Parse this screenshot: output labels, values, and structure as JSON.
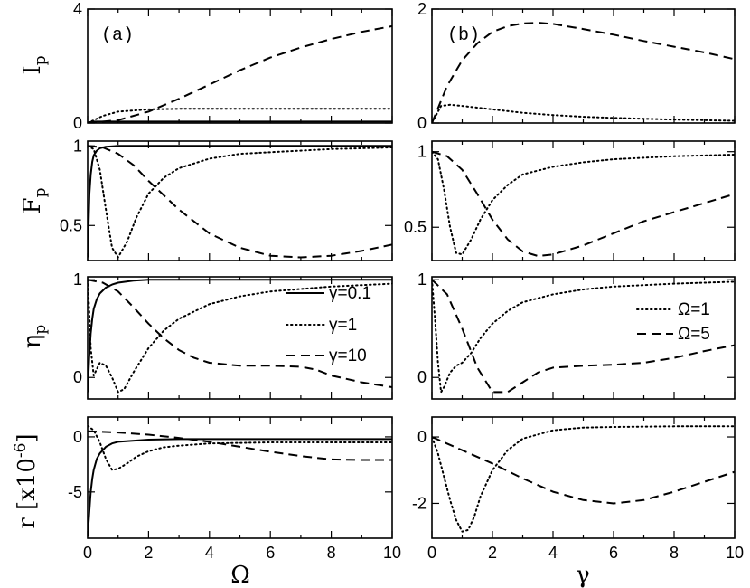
{
  "figure": {
    "xlabel_left": "Ω",
    "xlabel_right": "γ"
  },
  "panels": {
    "a": {
      "tag": "(a)"
    },
    "b": {
      "tag": "(b)"
    }
  },
  "rows": [
    {
      "ylabel": "I",
      "ysub": "p"
    },
    {
      "ylabel": "F",
      "ysub": "p"
    },
    {
      "ylabel": "η",
      "ysub": "p"
    },
    {
      "ylabel": "r [x10",
      "ysub": "",
      "ysup": "-6",
      "ysuffix": "]"
    }
  ],
  "legends": {
    "left": [
      "γ=0.1",
      "γ=1",
      "γ=10"
    ],
    "right": [
      "Ω=1",
      "Ω=5"
    ]
  },
  "style": {
    "line_color": "#000000"
  },
  "chart_data": [
    {
      "type": "line",
      "id": "Ip_a",
      "xlabel": "Ω",
      "ylabel": "Ip",
      "xlim": [
        0,
        10
      ],
      "ylim": [
        0,
        4
      ],
      "xticks": [],
      "yticks": [
        0,
        4
      ],
      "series": [
        {
          "name": "γ=0.1",
          "dash": "solid",
          "x": [
            0,
            0.2,
            0.5,
            1,
            10
          ],
          "y": [
            0.02,
            0.05,
            0.05,
            0.05,
            0.05
          ]
        },
        {
          "name": "γ=1",
          "dash": "dotted",
          "x": [
            0,
            0.5,
            1,
            2,
            3,
            5,
            10
          ],
          "y": [
            0,
            0.25,
            0.4,
            0.48,
            0.5,
            0.5,
            0.5
          ]
        },
        {
          "name": "γ=10",
          "dash": "dashed",
          "x": [
            0,
            1,
            2,
            3,
            4,
            5,
            6,
            7,
            8,
            9,
            10
          ],
          "y": [
            0,
            0.1,
            0.4,
            0.85,
            1.35,
            1.85,
            2.3,
            2.65,
            2.95,
            3.2,
            3.4
          ]
        }
      ]
    },
    {
      "type": "line",
      "id": "Fp_a",
      "xlabel": "Ω",
      "ylabel": "Fp",
      "xlim": [
        0,
        10
      ],
      "ylim": [
        0.28,
        1.03
      ],
      "xticks": [],
      "yticks": [
        0.5,
        1
      ],
      "series": [
        {
          "name": "γ=0.1",
          "dash": "solid",
          "x": [
            0,
            0.03,
            0.06,
            0.1,
            0.15,
            0.2,
            0.3,
            0.4,
            0.6,
            1,
            10
          ],
          "y": [
            0.3,
            0.5,
            0.7,
            0.82,
            0.9,
            0.94,
            0.97,
            0.985,
            0.995,
            1.0,
            1.0
          ]
        },
        {
          "name": "γ=1",
          "dash": "dotted",
          "x": [
            0,
            0.2,
            0.4,
            0.6,
            0.8,
            1,
            1.3,
            1.6,
            2,
            2.5,
            3,
            4,
            5,
            6,
            8,
            10
          ],
          "y": [
            1.0,
            0.98,
            0.85,
            0.6,
            0.36,
            0.3,
            0.4,
            0.55,
            0.7,
            0.8,
            0.86,
            0.92,
            0.95,
            0.96,
            0.98,
            0.99
          ]
        },
        {
          "name": "γ=10",
          "dash": "dashed",
          "x": [
            0,
            0.5,
            1,
            1.5,
            2,
            3,
            4,
            5,
            6,
            7,
            8,
            9,
            10
          ],
          "y": [
            1.0,
            0.99,
            0.95,
            0.88,
            0.78,
            0.6,
            0.45,
            0.36,
            0.31,
            0.3,
            0.31,
            0.34,
            0.38
          ]
        }
      ]
    },
    {
      "type": "line",
      "id": "eta_a",
      "xlabel": "Ω",
      "ylabel": "ηp",
      "xlim": [
        0,
        10
      ],
      "ylim": [
        -0.22,
        1.03
      ],
      "xticks": [],
      "yticks": [
        0,
        1
      ],
      "series": [
        {
          "name": "γ=0.1",
          "dash": "solid",
          "x": [
            0,
            0.05,
            0.1,
            0.15,
            0.2,
            0.3,
            0.4,
            0.6,
            0.8,
            1,
            1.5,
            2,
            3,
            10
          ],
          "y": [
            -0.15,
            0.2,
            0.45,
            0.6,
            0.7,
            0.8,
            0.86,
            0.92,
            0.95,
            0.97,
            0.99,
            1.0,
            1.0,
            1.0
          ]
        },
        {
          "name": "γ=1",
          "dash": "dotted",
          "x": [
            0,
            0.05,
            0.1,
            0.2,
            0.4,
            0.6,
            0.8,
            1,
            1.2,
            1.5,
            2,
            2.5,
            3,
            4,
            5,
            6,
            8,
            10
          ],
          "y": [
            1.0,
            0.7,
            0.3,
            0.02,
            0.15,
            0.12,
            0.0,
            -0.15,
            -0.12,
            0.05,
            0.3,
            0.48,
            0.6,
            0.75,
            0.83,
            0.88,
            0.93,
            0.96
          ]
        },
        {
          "name": "γ=10",
          "dash": "dashed",
          "x": [
            0,
            0.5,
            1,
            1.5,
            2,
            2.5,
            3,
            3.5,
            4,
            5,
            6,
            7,
            7.5,
            8,
            9,
            10
          ],
          "y": [
            1.0,
            0.97,
            0.88,
            0.72,
            0.55,
            0.4,
            0.28,
            0.2,
            0.15,
            0.12,
            0.12,
            0.11,
            0.08,
            0.02,
            -0.05,
            -0.1
          ]
        }
      ]
    },
    {
      "type": "line",
      "id": "r_a",
      "xlabel": "Ω",
      "ylabel": "r [x10^-6]",
      "xlim": [
        0,
        10
      ],
      "ylim": [
        -9.2,
        1.8
      ],
      "xticks": [
        0,
        2,
        4,
        6,
        8,
        10
      ],
      "yticks": [
        -5,
        0
      ],
      "series": [
        {
          "name": "γ=0.1",
          "dash": "solid",
          "x": [
            0,
            0.05,
            0.1,
            0.15,
            0.2,
            0.3,
            0.4,
            0.6,
            0.8,
            1,
            2,
            3,
            5,
            10
          ],
          "y": [
            -9,
            -7,
            -5,
            -3.8,
            -3,
            -2,
            -1.5,
            -0.9,
            -0.6,
            -0.45,
            -0.25,
            -0.2,
            -0.2,
            -0.2
          ]
        },
        {
          "name": "γ=1",
          "dash": "dotted",
          "x": [
            0,
            0.2,
            0.4,
            0.6,
            0.8,
            1,
            1.3,
            1.6,
            2,
            2.5,
            3,
            4,
            5,
            6,
            8,
            10
          ],
          "y": [
            1.0,
            0.6,
            -0.5,
            -2.0,
            -3.0,
            -2.9,
            -2.4,
            -1.8,
            -1.3,
            -0.95,
            -0.8,
            -0.6,
            -0.55,
            -0.5,
            -0.5,
            -0.5
          ]
        },
        {
          "name": "γ=10",
          "dash": "dashed",
          "x": [
            0,
            1,
            2,
            3,
            4,
            5,
            6,
            7,
            8,
            9,
            10
          ],
          "y": [
            0.5,
            0.4,
            0.2,
            -0.1,
            -0.45,
            -0.9,
            -1.35,
            -1.75,
            -2.05,
            -2.1,
            -2.1
          ]
        }
      ]
    },
    {
      "type": "line",
      "id": "Ip_b",
      "xlabel": "γ",
      "ylabel": "Ip",
      "xlim": [
        0,
        10
      ],
      "ylim": [
        0,
        2
      ],
      "xticks": [],
      "yticks": [
        0,
        2
      ],
      "series": [
        {
          "name": "Ω=1",
          "dash": "dotted",
          "x": [
            0,
            0.3,
            0.6,
            1,
            1.5,
            2,
            3,
            4,
            5,
            6,
            8,
            10
          ],
          "y": [
            0.0,
            0.3,
            0.32,
            0.3,
            0.27,
            0.24,
            0.18,
            0.14,
            0.11,
            0.09,
            0.06,
            0.04
          ]
        },
        {
          "name": "Ω=5",
          "dash": "dashed",
          "x": [
            0,
            0.5,
            1,
            1.5,
            2,
            2.5,
            3,
            3.5,
            4,
            5,
            6,
            7,
            8,
            9,
            10
          ],
          "y": [
            0,
            0.65,
            1.1,
            1.4,
            1.6,
            1.7,
            1.75,
            1.76,
            1.74,
            1.65,
            1.55,
            1.44,
            1.34,
            1.24,
            1.12
          ]
        }
      ]
    },
    {
      "type": "line",
      "id": "Fp_b",
      "xlabel": "γ",
      "ylabel": "Fp",
      "xlim": [
        0,
        10
      ],
      "ylim": [
        0.28,
        1.07
      ],
      "xticks": [],
      "yticks": [
        0.5,
        1
      ],
      "series": [
        {
          "name": "Ω=1",
          "dash": "dotted",
          "x": [
            0,
            0.2,
            0.4,
            0.6,
            0.8,
            1,
            1.3,
            1.6,
            2,
            2.5,
            3,
            4,
            5,
            6,
            8,
            10
          ],
          "y": [
            1.0,
            0.95,
            0.75,
            0.5,
            0.33,
            0.32,
            0.42,
            0.55,
            0.68,
            0.78,
            0.85,
            0.9,
            0.93,
            0.95,
            0.97,
            0.98
          ]
        },
        {
          "name": "Ω=5",
          "dash": "dashed",
          "x": [
            0,
            0.5,
            1,
            1.5,
            2,
            2.5,
            3,
            3.5,
            4,
            5,
            6,
            7,
            8,
            9,
            10
          ],
          "y": [
            1.0,
            0.97,
            0.88,
            0.72,
            0.55,
            0.42,
            0.34,
            0.31,
            0.32,
            0.38,
            0.46,
            0.54,
            0.6,
            0.66,
            0.72
          ]
        }
      ]
    },
    {
      "type": "line",
      "id": "eta_b",
      "xlabel": "γ",
      "ylabel": "ηp",
      "xlim": [
        0,
        10
      ],
      "ylim": [
        -0.22,
        1.03
      ],
      "xticks": [],
      "yticks": [
        0,
        1
      ],
      "series": [
        {
          "name": "Ω=1",
          "dash": "dotted",
          "x": [
            0,
            0.1,
            0.2,
            0.3,
            0.4,
            0.6,
            0.8,
            1,
            1.3,
            1.6,
            2,
            2.5,
            3,
            4,
            5,
            6,
            8,
            10
          ],
          "y": [
            1.0,
            0.6,
            0.15,
            -0.15,
            -0.1,
            0.05,
            0.12,
            0.15,
            0.25,
            0.4,
            0.55,
            0.68,
            0.77,
            0.85,
            0.9,
            0.93,
            0.96,
            0.98
          ]
        },
        {
          "name": "Ω=5",
          "dash": "dashed",
          "x": [
            0,
            0.5,
            1,
            1.5,
            2,
            2.5,
            3,
            3.5,
            4,
            5,
            6,
            7,
            8,
            9,
            10
          ],
          "y": [
            1.0,
            0.85,
            0.5,
            0.1,
            -0.15,
            -0.15,
            -0.05,
            0.05,
            0.1,
            0.12,
            0.13,
            0.15,
            0.2,
            0.27,
            0.33
          ]
        }
      ]
    },
    {
      "type": "line",
      "id": "r_b",
      "xlabel": "γ",
      "ylabel": "r [x10^-6]",
      "xlim": [
        0,
        10
      ],
      "ylim": [
        -3.05,
        0.6
      ],
      "xticks": [
        0,
        2,
        4,
        6,
        8,
        10
      ],
      "yticks": [
        -2,
        0
      ],
      "series": [
        {
          "name": "Ω=1",
          "dash": "dotted",
          "x": [
            0,
            0.2,
            0.4,
            0.6,
            0.8,
            1,
            1.2,
            1.4,
            1.6,
            2,
            2.5,
            3,
            4,
            5,
            6,
            8,
            10
          ],
          "y": [
            0,
            -0.5,
            -1.2,
            -1.9,
            -2.5,
            -2.85,
            -2.8,
            -2.4,
            -1.8,
            -1.0,
            -0.4,
            -0.05,
            0.2,
            0.28,
            0.3,
            0.32,
            0.32
          ]
        },
        {
          "name": "Ω=5",
          "dash": "dashed",
          "x": [
            0,
            1,
            2,
            3,
            4,
            5,
            6,
            7,
            8,
            9,
            10
          ],
          "y": [
            0,
            -0.4,
            -0.8,
            -1.25,
            -1.65,
            -1.9,
            -2.0,
            -1.9,
            -1.65,
            -1.35,
            -1.05
          ]
        }
      ]
    }
  ]
}
